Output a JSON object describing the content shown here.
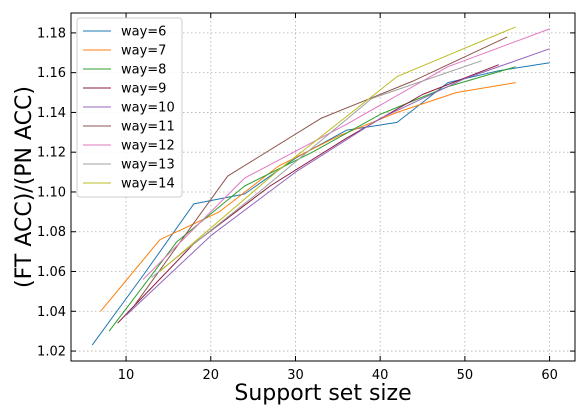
{
  "chart_data": {
    "type": "line",
    "title": "",
    "xlabel": "Support set size",
    "ylabel": "(FT ACC)/(PN ACC)",
    "xlim": [
      3.5,
      63
    ],
    "ylim": [
      1.015,
      1.19
    ],
    "xticks": [
      10,
      20,
      30,
      40,
      50,
      60
    ],
    "yticks": [
      1.02,
      1.04,
      1.06,
      1.08,
      1.1,
      1.12,
      1.14,
      1.16,
      1.18
    ],
    "ytick_labels": [
      "1.02",
      "1.04",
      "1.06",
      "1.08",
      "1.10",
      "1.12",
      "1.14",
      "1.16",
      "1.18"
    ],
    "grid": true,
    "legend_position": "upper-left",
    "series": [
      {
        "name": "way=6",
        "color": "#1f77b4",
        "x": [
          6,
          12,
          18,
          24,
          30,
          36,
          42,
          48,
          54,
          60
        ],
        "y": [
          1.023,
          1.058,
          1.094,
          1.099,
          1.117,
          1.131,
          1.135,
          1.155,
          1.161,
          1.165
        ]
      },
      {
        "name": "way=7",
        "color": "#ff7f0e",
        "x": [
          7,
          14,
          21,
          28,
          35,
          42,
          49,
          56
        ],
        "y": [
          1.04,
          1.076,
          1.09,
          1.113,
          1.128,
          1.14,
          1.15,
          1.155
        ]
      },
      {
        "name": "way=8",
        "color": "#2ca02c",
        "x": [
          8,
          16,
          24,
          32,
          40,
          48,
          56
        ],
        "y": [
          1.03,
          1.075,
          1.103,
          1.12,
          1.139,
          1.153,
          1.163
        ]
      },
      {
        "name": "way=9",
        "color": "#8c1a3f",
        "x": [
          9,
          18,
          27,
          36,
          45,
          54
        ],
        "y": [
          1.034,
          1.074,
          1.103,
          1.127,
          1.149,
          1.164
        ]
      },
      {
        "name": "way=10",
        "color": "#9467bd",
        "x": [
          10,
          20,
          30,
          40,
          50,
          60
        ],
        "y": [
          1.038,
          1.078,
          1.11,
          1.137,
          1.157,
          1.172
        ]
      },
      {
        "name": "way=11",
        "color": "#8c564b",
        "x": [
          11,
          22,
          33,
          44,
          55
        ],
        "y": [
          1.043,
          1.108,
          1.137,
          1.156,
          1.178
        ]
      },
      {
        "name": "way=12",
        "color": "#e377c2",
        "x": [
          12,
          24,
          36,
          48,
          60
        ],
        "y": [
          1.056,
          1.107,
          1.134,
          1.163,
          1.182
        ]
      },
      {
        "name": "way=13",
        "color": "#a0a0a0",
        "x": [
          13,
          26,
          39,
          52
        ],
        "y": [
          1.057,
          1.101,
          1.147,
          1.166
        ]
      },
      {
        "name": "way=14",
        "color": "#bcbd22",
        "x": [
          14,
          28,
          42,
          56
        ],
        "y": [
          1.06,
          1.111,
          1.158,
          1.183
        ]
      }
    ]
  }
}
